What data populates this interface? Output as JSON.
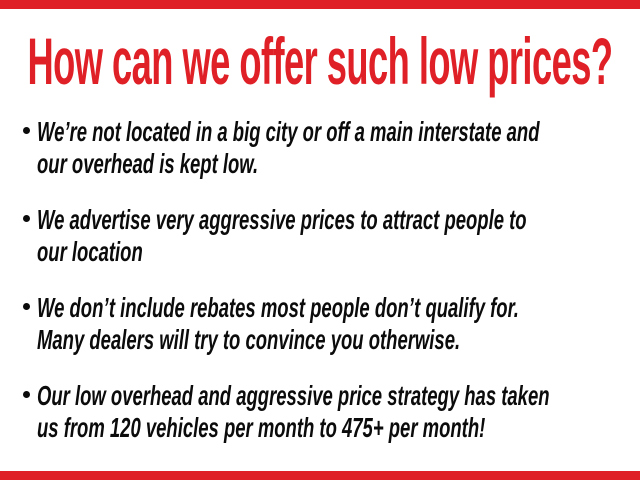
{
  "colors": {
    "accent-red": "#e02027",
    "text-black": "#0b0b0b",
    "background": "#ffffff"
  },
  "slide": {
    "title": "How can we offer such low prices?",
    "bullets": [
      {
        "line1": "We’re not located in a big city or off a main interstate and",
        "line2": "our overhead is kept low."
      },
      {
        "line1": "We advertise very aggressive prices to attract people to",
        "line2": "our location"
      },
      {
        "line1": "We don’t include rebates most people don’t qualify for.",
        "line2": "Many dealers will try to convince you otherwise."
      },
      {
        "line1": "Our low overhead and aggressive price strategy has taken",
        "line2": "us from 120 vehicles per month to 475+ per month!"
      }
    ]
  }
}
